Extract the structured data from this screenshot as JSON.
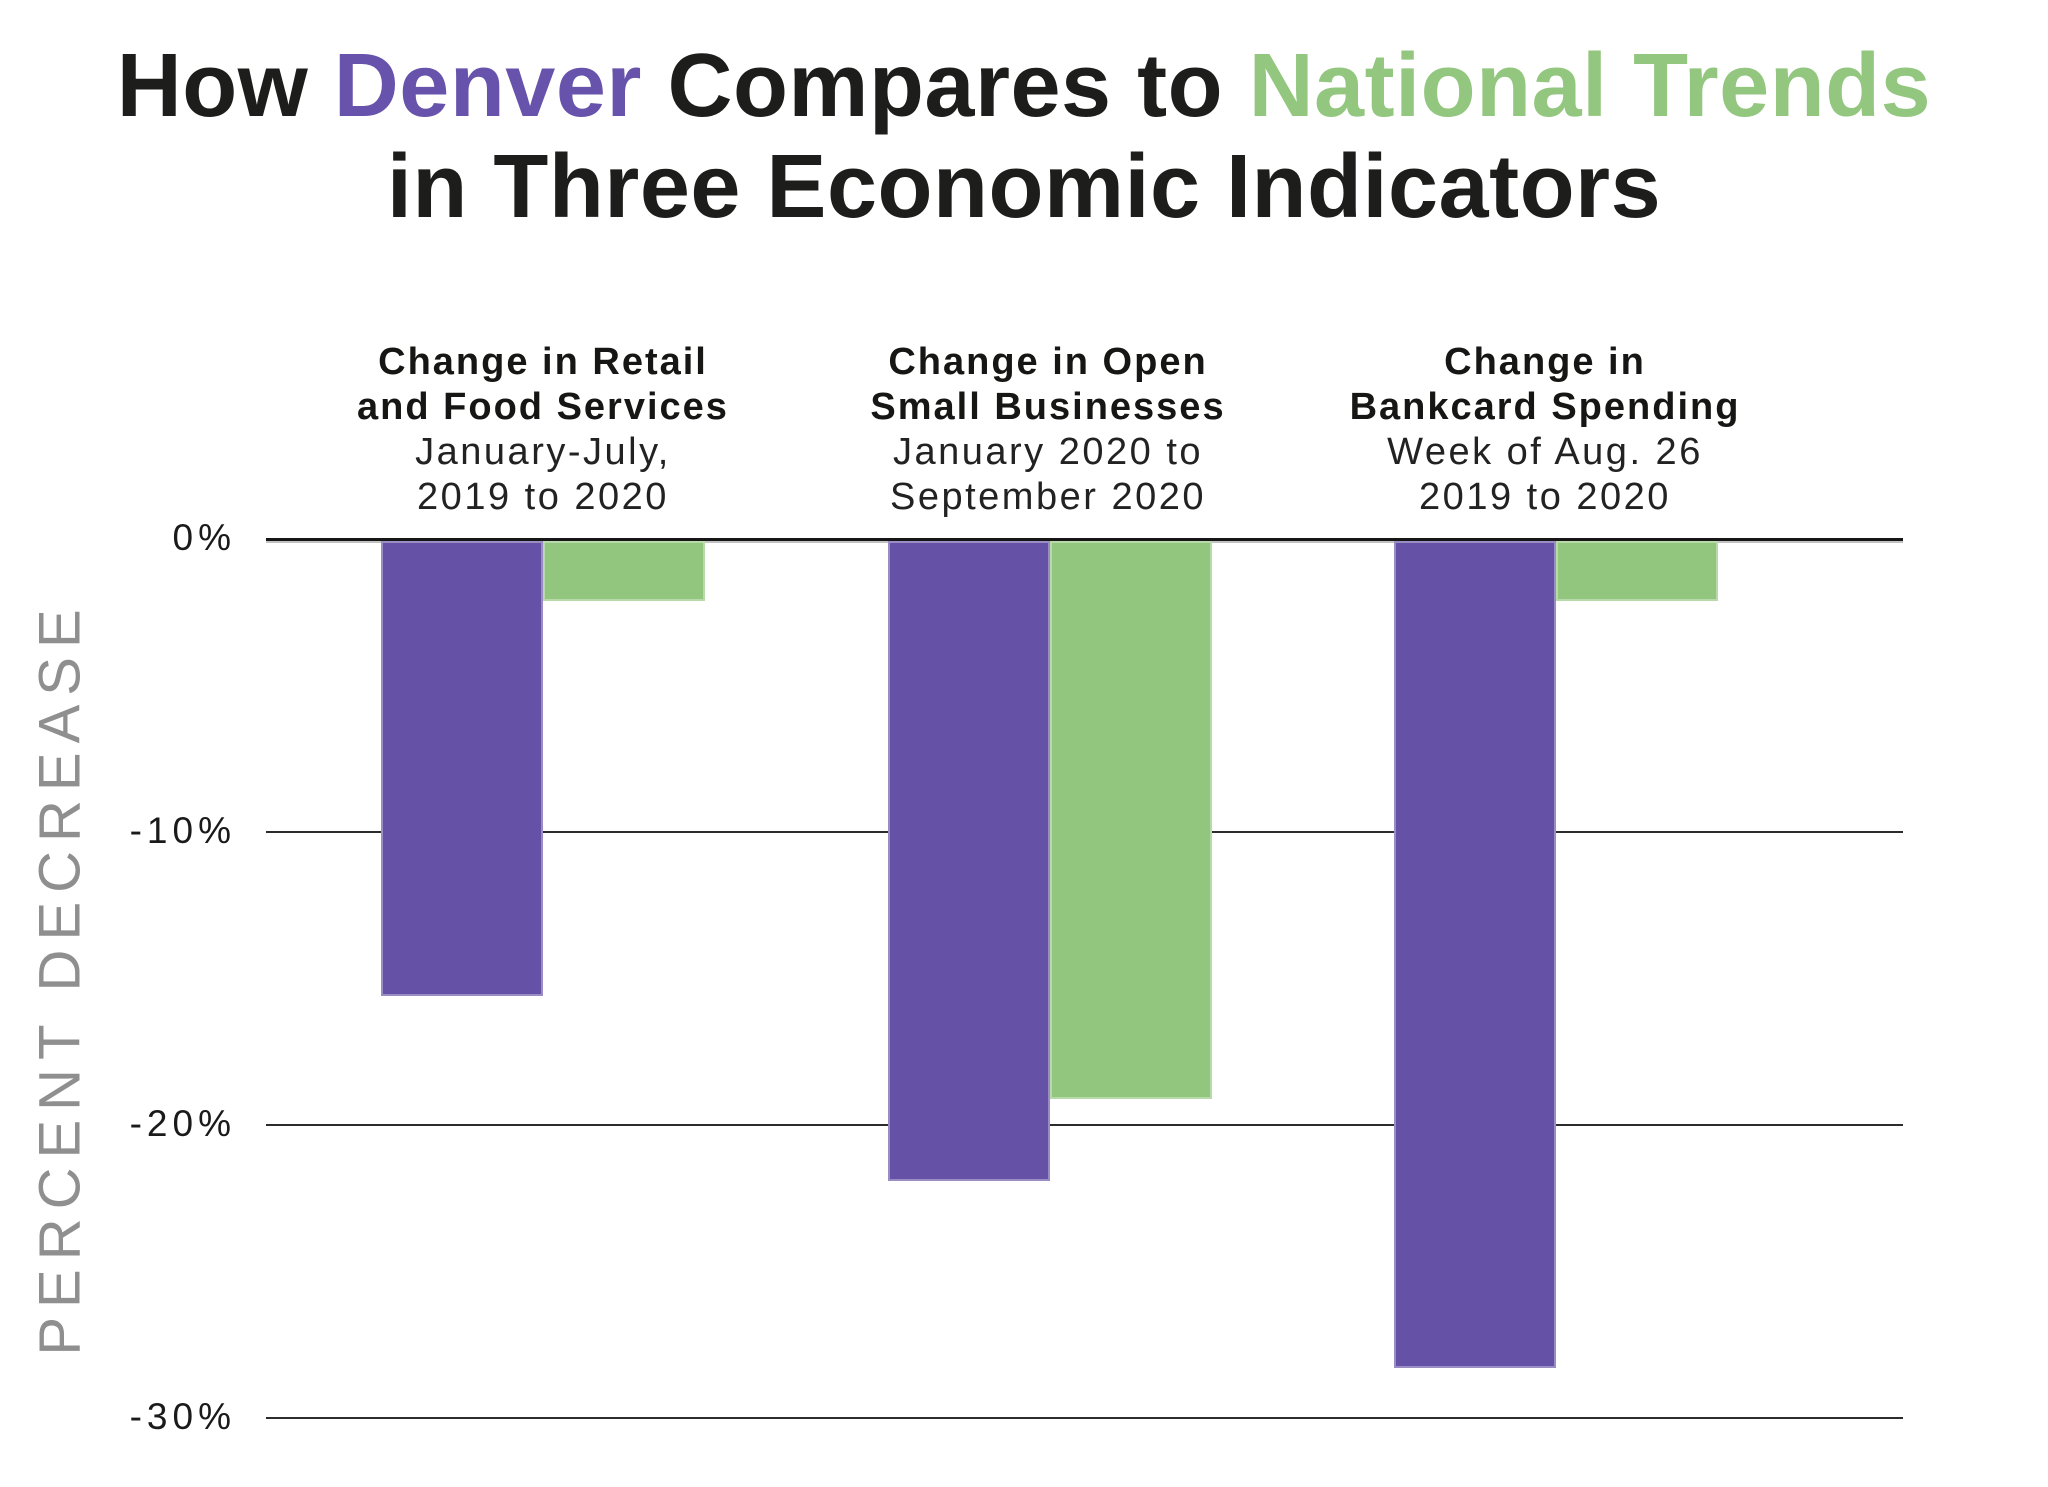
{
  "title": {
    "line1_segments": [
      {
        "text": "How ",
        "color": "#1d1d1b"
      },
      {
        "text": "Denver",
        "color": "#6753ab"
      },
      {
        "text": " Compares to ",
        "color": "#1d1d1b"
      },
      {
        "text": "National Trends",
        "color": "#93c77f"
      }
    ],
    "line2": "in Three Economic Indicators"
  },
  "chart_data": {
    "type": "bar",
    "orientation": "vertical",
    "title": "How Denver Compares to National Trends in Three Economic Indicators",
    "ylabel": "PERCENT DECREASE",
    "xlabel": "",
    "ylim": [
      -30,
      0
    ],
    "grid": true,
    "legend_position": "none (series identified by colored words in title: Denver = purple, National Trends = green)",
    "yticks": [
      {
        "value": 0,
        "label": "0%"
      },
      {
        "value": -10,
        "label": "-10%"
      },
      {
        "value": -20,
        "label": "-20%"
      },
      {
        "value": -30,
        "label": "-30%"
      }
    ],
    "categories": [
      "Change in Retail and Food Services (January-July, 2019 to 2020)",
      "Change in Open Small Businesses (January 2020 to September 2020)",
      "Change in Bankcard Spending (Week of Aug. 26 2019 to 2020)"
    ],
    "groups": [
      {
        "title_lines": [
          "Change in Retail",
          "and Food Services"
        ],
        "subtitle_lines": [
          "January-July,",
          "2019 to 2020"
        ]
      },
      {
        "title_lines": [
          "Change in Open",
          "Small Businesses"
        ],
        "subtitle_lines": [
          "January 2020 to",
          "September 2020"
        ]
      },
      {
        "title_lines": [
          "Change in",
          "Bankcard Spending"
        ],
        "subtitle_lines": [
          "Week of Aug. 26",
          "2019 to 2020"
        ]
      }
    ],
    "series": [
      {
        "name": "Denver",
        "color": "#6551a5",
        "values": [
          -15.6,
          -21.9,
          -28.3
        ]
      },
      {
        "name": "National Trends",
        "color": "#92c67e",
        "values": [
          -2.1,
          -19.1,
          -2.1
        ]
      }
    ]
  }
}
